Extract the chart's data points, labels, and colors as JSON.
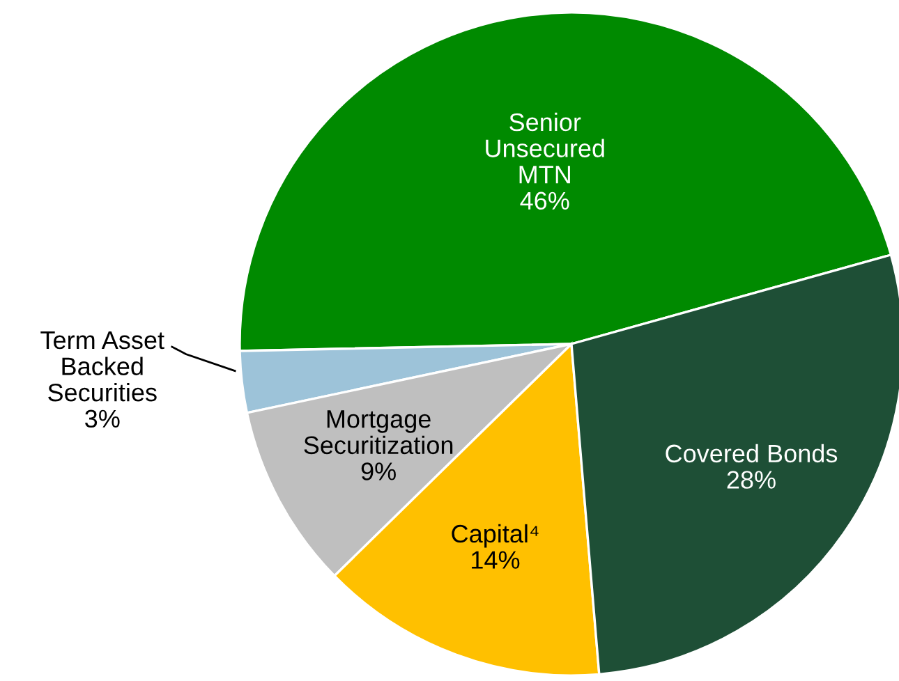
{
  "chart_data": {
    "type": "pie",
    "categories": [
      "Senior\nUnsecured\nMTN",
      "Term Asset\nBacked\nSecurities",
      "Mortgage\nSecuritization",
      "Capital⁴",
      "Covered Bonds"
    ],
    "values": [
      46,
      3,
      9,
      14,
      28
    ],
    "colors": [
      "#008a00",
      "#9dc3d9",
      "#bfbfbf",
      "#ffc000",
      "#1e4f36"
    ],
    "value_labels": [
      "46%",
      "3%",
      "9%",
      "14%",
      "28%"
    ]
  }
}
